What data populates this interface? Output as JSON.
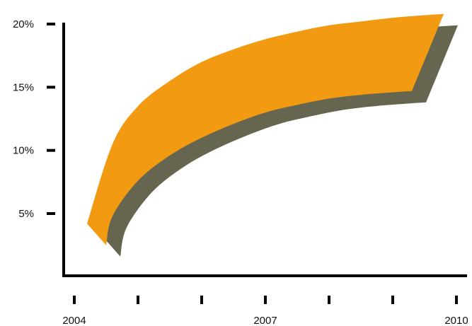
{
  "chart_data": {
    "type": "area",
    "title": "",
    "xlabel": "",
    "ylabel": "",
    "x_ticks": [
      "2004",
      "",
      "",
      "2007",
      "",
      "",
      "2010"
    ],
    "y_ticks": [
      "5%",
      "10%",
      "15%",
      "20%"
    ],
    "ylim": [
      0,
      20
    ],
    "grid": false,
    "legend": "none",
    "series": [
      {
        "band": "upper",
        "x": [
          2004.2,
          2004.6,
          2005.0,
          2005.5,
          2006.0,
          2006.5,
          2007.0,
          2007.5,
          2008.0,
          2008.5,
          2009.0,
          2009.5,
          2009.8
        ],
        "y": [
          4.2,
          10.5,
          13.5,
          15.5,
          17.0,
          18.0,
          18.8,
          19.4,
          19.9,
          20.2,
          20.5,
          20.7,
          20.8
        ]
      },
      {
        "band": "lower",
        "x": [
          2004.5,
          2004.6,
          2005.0,
          2005.5,
          2006.0,
          2006.5,
          2007.0,
          2007.5,
          2008.0,
          2008.5,
          2009.0,
          2009.3
        ],
        "y": [
          2.5,
          4.8,
          7.6,
          9.6,
          11.0,
          12.1,
          13.0,
          13.6,
          14.1,
          14.4,
          14.6,
          14.7
        ]
      }
    ],
    "colors": {
      "band": "#F29A12",
      "shadow": "#66654F",
      "axis": "#000000"
    }
  }
}
